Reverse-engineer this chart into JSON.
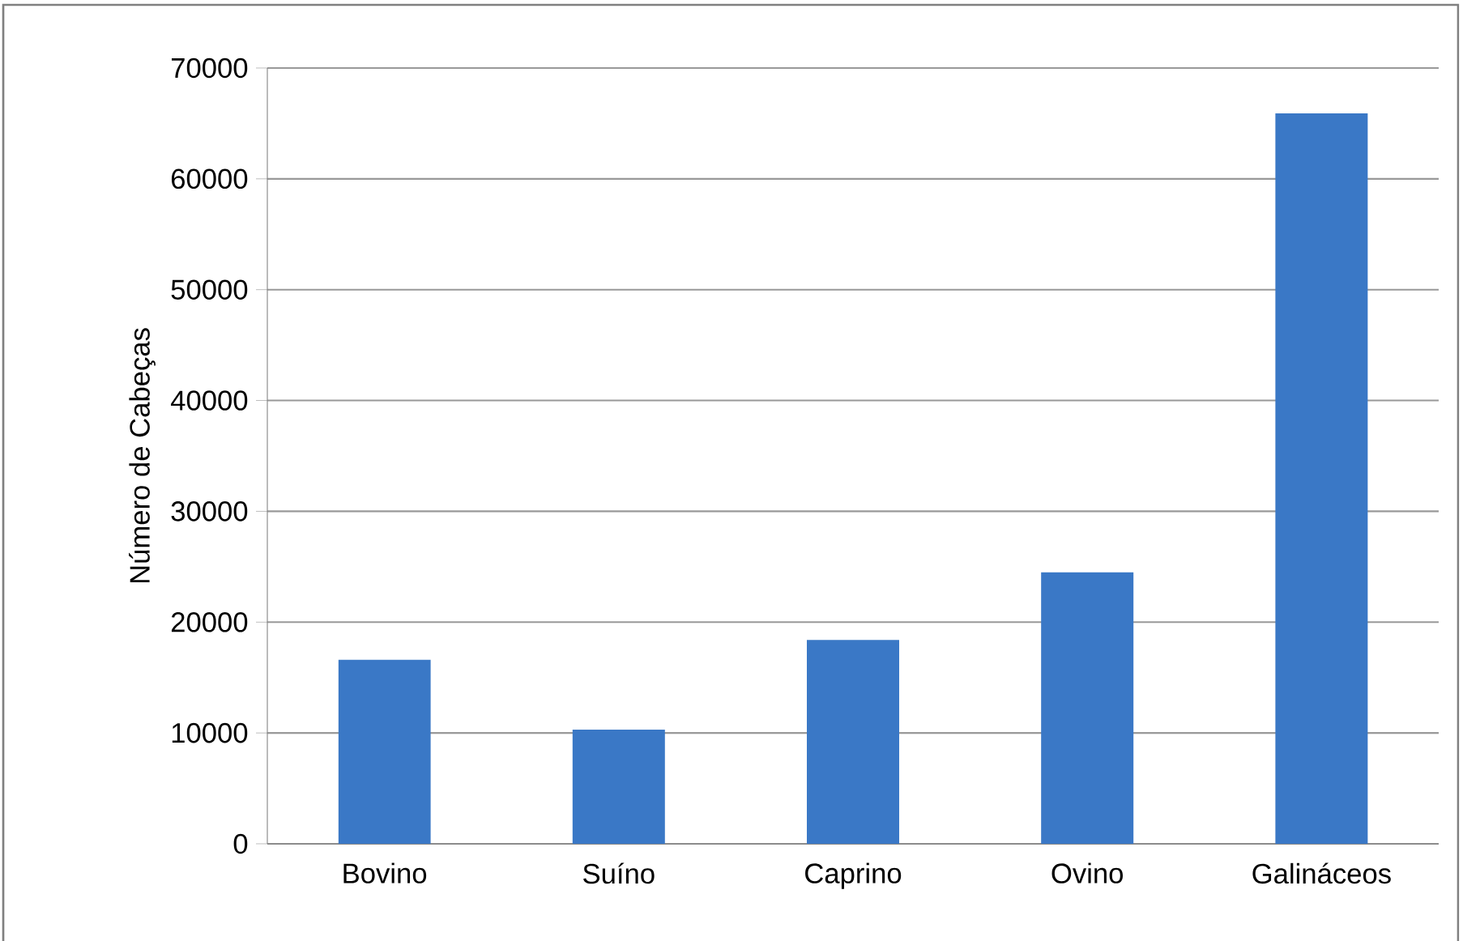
{
  "chart_data": {
    "type": "bar",
    "ylabel": "Número de Cabeças",
    "categories": [
      "Bovino",
      "Suíno",
      "Caprino",
      "Ovino",
      "Galináceos"
    ],
    "values": [
      16600,
      10300,
      18400,
      24500,
      65900
    ],
    "color": "#3a78c6",
    "ylim": [
      0,
      70000
    ],
    "yticks": [
      0,
      10000,
      20000,
      30000,
      40000,
      50000,
      60000,
      70000
    ],
    "grid": "y"
  }
}
